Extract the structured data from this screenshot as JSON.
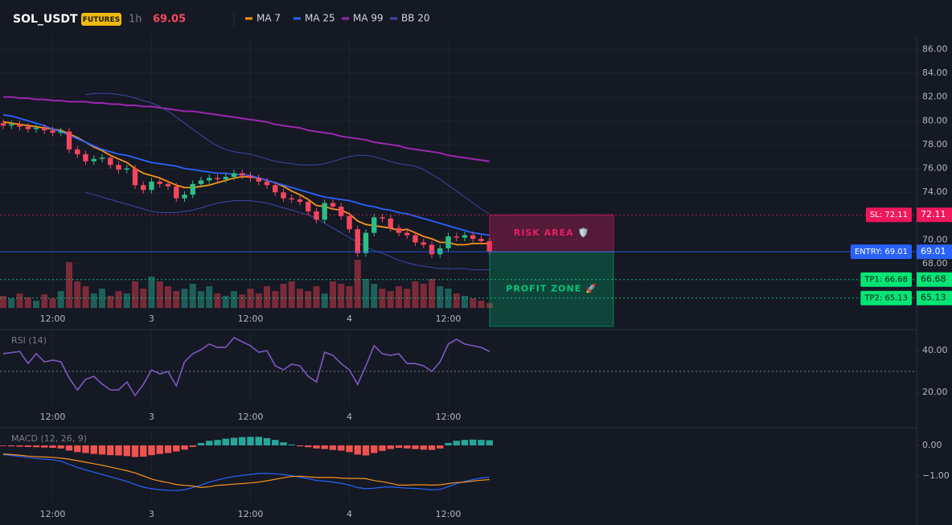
{
  "header": {
    "symbol": "SOL_USDT",
    "badge": "FUTURES",
    "interval": "1h",
    "price": "69.05"
  },
  "chart_data": [
    {
      "type": "candlestick",
      "categories": [
        null,
        null,
        null,
        null,
        null,
        null,
        "12:00",
        null,
        null,
        null,
        null,
        null,
        null,
        null,
        null,
        null,
        null,
        null,
        "3",
        null,
        null,
        null,
        null,
        null,
        null,
        null,
        null,
        null,
        null,
        null,
        "12:00",
        null,
        null,
        null,
        null,
        null,
        null,
        null,
        null,
        null,
        null,
        null,
        "4",
        null,
        null,
        null,
        null,
        null,
        null,
        null,
        null,
        null,
        null,
        null,
        "12:00",
        null,
        null,
        null,
        null,
        null
      ],
      "open": [
        79.8,
        79.6,
        79.7,
        79.5,
        79.3,
        79.4,
        79.2,
        79.0,
        79.1,
        77.6,
        77.2,
        76.6,
        76.8,
        76.9,
        76.3,
        75.9,
        76.0,
        74.6,
        74.2,
        74.9,
        74.7,
        74.5,
        73.5,
        73.8,
        74.7,
        75.0,
        75.2,
        75.1,
        75.3,
        75.6,
        75.4,
        75.2,
        74.9,
        74.6,
        74.0,
        73.5,
        73.4,
        73.2,
        72.4,
        71.7,
        73.1,
        72.8,
        72.0,
        70.9,
        68.9,
        70.6,
        71.9,
        71.8,
        71.0,
        70.6,
        70.4,
        69.8,
        69.6,
        68.8,
        69.3,
        70.3,
        70.2,
        70.4,
        70.1,
        69.9
      ],
      "high": [
        80.1,
        80.0,
        80.0,
        79.8,
        79.7,
        79.7,
        79.5,
        79.4,
        79.4,
        77.9,
        77.5,
        77.1,
        77.2,
        77.2,
        76.6,
        76.3,
        76.3,
        74.9,
        75.2,
        75.2,
        75.0,
        74.8,
        74.1,
        75.0,
        75.3,
        75.5,
        75.5,
        75.6,
        75.9,
        75.9,
        75.7,
        75.5,
        75.2,
        74.9,
        74.3,
        73.8,
        73.7,
        73.5,
        72.7,
        73.4,
        73.4,
        73.1,
        72.3,
        71.2,
        70.9,
        72.2,
        72.2,
        72.1,
        71.3,
        70.9,
        70.7,
        70.1,
        69.9,
        69.6,
        70.6,
        70.6,
        70.7,
        70.7,
        70.4,
        70.2
      ],
      "low": [
        79.3,
        79.3,
        79.2,
        79.0,
        79.0,
        78.9,
        78.7,
        78.7,
        77.3,
        76.9,
        76.3,
        76.3,
        76.5,
        76.0,
        75.6,
        75.6,
        74.3,
        73.9,
        73.9,
        74.4,
        74.2,
        73.2,
        73.2,
        73.5,
        74.4,
        74.7,
        74.8,
        74.8,
        75.0,
        75.1,
        74.9,
        74.6,
        74.3,
        73.7,
        73.2,
        73.1,
        72.9,
        72.1,
        71.4,
        71.4,
        72.5,
        71.7,
        70.6,
        68.6,
        68.6,
        70.3,
        71.5,
        70.7,
        70.3,
        70.1,
        69.5,
        69.3,
        68.5,
        68.5,
        69.0,
        69.9,
        69.9,
        69.8,
        69.6,
        68.75
      ],
      "close": [
        79.6,
        79.7,
        79.5,
        79.3,
        79.4,
        79.2,
        79.0,
        79.1,
        77.6,
        77.2,
        76.6,
        76.8,
        76.9,
        76.3,
        75.9,
        76.0,
        74.6,
        74.2,
        74.9,
        74.7,
        74.5,
        73.5,
        73.8,
        74.7,
        75.0,
        75.2,
        75.1,
        75.3,
        75.6,
        75.4,
        75.2,
        74.9,
        74.6,
        74.0,
        73.5,
        73.4,
        73.2,
        72.4,
        71.7,
        73.1,
        72.8,
        72.0,
        70.9,
        68.9,
        70.6,
        71.9,
        71.8,
        71.0,
        70.6,
        70.4,
        69.8,
        69.6,
        68.8,
        69.3,
        70.3,
        70.2,
        70.4,
        70.1,
        69.9,
        69.05
      ],
      "volume": [
        25,
        20,
        30,
        22,
        15,
        28,
        20,
        35,
        95,
        55,
        45,
        30,
        40,
        25,
        35,
        30,
        55,
        40,
        65,
        55,
        45,
        35,
        40,
        50,
        35,
        45,
        30,
        25,
        35,
        28,
        40,
        30,
        45,
        35,
        50,
        55,
        40,
        35,
        45,
        30,
        55,
        50,
        45,
        100,
        60,
        50,
        40,
        35,
        45,
        40,
        55,
        50,
        60,
        45,
        40,
        30,
        25,
        20,
        15,
        10
      ],
      "up_color": "#2ebd85",
      "down_color": "#f6465d",
      "volume_up_color": "#1f5f5a",
      "volume_down_color": "#7a2a38",
      "ylim": [
        64.3,
        87.1
      ],
      "yticks": [
        {
          "value": 68,
          "label": "68.00"
        },
        {
          "value": 70,
          "label": "70.00"
        },
        {
          "value": 74,
          "label": "74.00"
        },
        {
          "value": 76,
          "label": "76.00"
        },
        {
          "value": 78,
          "label": "78.00"
        },
        {
          "value": 80,
          "label": "80.00"
        },
        {
          "value": 82,
          "label": "82.00"
        },
        {
          "value": 84,
          "label": "84.00"
        },
        {
          "value": 86,
          "label": "86.00"
        }
      ],
      "grid": true,
      "series": [
        {
          "name": "MA 7",
          "color": "#f7931a",
          "values": [
            79.9,
            79.8,
            79.7,
            79.6,
            79.5,
            79.4,
            79.3,
            79.2,
            78.9,
            78.6,
            78.2,
            77.8,
            77.5,
            77.1,
            76.8,
            76.5,
            76.0,
            75.6,
            75.4,
            75.2,
            74.9,
            74.6,
            74.4,
            74.4,
            74.5,
            74.6,
            74.8,
            75.0,
            75.2,
            75.3,
            75.3,
            75.2,
            75.0,
            74.8,
            74.5,
            74.1,
            73.8,
            73.4,
            72.9,
            72.8,
            72.6,
            72.5,
            72.2,
            71.6,
            71.3,
            71.2,
            71.1,
            71.0,
            70.8,
            70.9,
            70.6,
            70.3,
            70.1,
            69.8,
            69.8,
            69.6,
            69.6,
            69.7,
            69.7,
            69.7
          ]
        },
        {
          "name": "MA 25",
          "color": "#2962ff",
          "values": [
            80.5,
            80.4,
            80.2,
            80.0,
            79.8,
            79.6,
            79.3,
            79.1,
            78.8,
            78.5,
            78.2,
            77.9,
            77.6,
            77.4,
            77.2,
            77.1,
            76.9,
            76.7,
            76.5,
            76.4,
            76.3,
            76.2,
            76.0,
            75.9,
            75.8,
            75.7,
            75.6,
            75.6,
            75.5,
            75.5,
            75.4,
            75.2,
            75.0,
            74.8,
            74.6,
            74.4,
            74.2,
            74.0,
            73.8,
            73.6,
            73.5,
            73.4,
            73.3,
            73.1,
            72.9,
            72.8,
            72.6,
            72.5,
            72.3,
            72.2,
            72.0,
            71.8,
            71.6,
            71.4,
            71.2,
            71.0,
            70.8,
            70.6,
            70.5,
            70.4
          ]
        },
        {
          "name": "MA 99",
          "color": "#9c27b0",
          "values": [
            82.0,
            82.0,
            81.9,
            81.9,
            81.8,
            81.8,
            81.7,
            81.7,
            81.6,
            81.6,
            81.6,
            81.5,
            81.5,
            81.4,
            81.4,
            81.3,
            81.3,
            81.2,
            81.2,
            81.1,
            81.0,
            80.9,
            80.8,
            80.8,
            80.7,
            80.6,
            80.5,
            80.4,
            80.3,
            80.2,
            80.1,
            80.0,
            79.9,
            79.7,
            79.6,
            79.5,
            79.4,
            79.2,
            79.1,
            79.0,
            78.9,
            78.7,
            78.6,
            78.5,
            78.4,
            78.2,
            78.1,
            78.0,
            77.9,
            77.7,
            77.6,
            77.5,
            77.4,
            77.3,
            77.1,
            77.0,
            76.9,
            76.8,
            76.7,
            76.6
          ]
        },
        {
          "name": "BB 20",
          "color": "#3949ab",
          "upper": [
            null,
            null,
            null,
            null,
            null,
            null,
            null,
            null,
            null,
            null,
            82.2,
            82.3,
            82.3,
            82.3,
            82.2,
            82.1,
            81.9,
            81.7,
            81.5,
            81.2,
            80.8,
            80.3,
            79.8,
            79.3,
            78.8,
            78.3,
            77.9,
            77.6,
            77.4,
            77.3,
            77.2,
            77.0,
            76.8,
            76.6,
            76.5,
            76.4,
            76.3,
            76.3,
            76.3,
            76.4,
            76.6,
            76.8,
            77.0,
            77.1,
            77.1,
            77.0,
            76.8,
            76.6,
            76.4,
            76.3,
            76.2,
            75.9,
            75.5,
            75.1,
            74.6,
            74.1,
            73.6,
            73.1,
            72.6,
            72.2
          ],
          "lower": [
            null,
            null,
            null,
            null,
            null,
            null,
            null,
            null,
            null,
            null,
            74.0,
            73.8,
            73.6,
            73.4,
            73.2,
            73.0,
            72.8,
            72.6,
            72.4,
            72.3,
            72.3,
            72.3,
            72.4,
            72.5,
            72.7,
            72.9,
            73.1,
            73.2,
            73.3,
            73.3,
            73.3,
            73.2,
            73.1,
            72.9,
            72.7,
            72.5,
            72.3,
            72.1,
            71.8,
            71.4,
            71.0,
            70.6,
            70.2,
            69.8,
            69.4,
            69.1,
            68.9,
            68.6,
            68.3,
            68.1,
            67.9,
            67.8,
            67.7,
            67.6,
            67.6,
            67.6,
            67.6,
            67.5,
            67.5,
            67.5
          ]
        }
      ],
      "levels": [
        {
          "value": 72.11,
          "label": "SL: 72.11",
          "price_label": "72.11",
          "color": "#f0185a",
          "text_color": "#ffffff",
          "style": "dotted"
        },
        {
          "value": 69.01,
          "label": "ENTRY: 69.01",
          "price_label": "69.01",
          "color": "#2962ff",
          "text_color": "#ffffff",
          "style": "solid"
        },
        {
          "value": 66.68,
          "label": "TP1: 66.68",
          "price_label": "66.68",
          "color": "#00e676",
          "text_color": "#0b1a12",
          "style": "dotted"
        },
        {
          "value": 65.13,
          "label": "TP2: 65.13",
          "price_label": "65.13",
          "color": "#00e676",
          "text_color": "#0b1a12",
          "style": "dotted"
        }
      ],
      "zones": [
        {
          "label": "RISK AREA 🛡️",
          "color": "#e91e63"
        },
        {
          "label": "PROFIT ZONE 🚀",
          "color": "#00c97a"
        }
      ]
    },
    {
      "type": "line",
      "title": "RSI (14)",
      "color": "#7e57c2",
      "values": [
        38.5,
        39.0,
        39.6,
        33.8,
        38.5,
        34.6,
        35.4,
        34.6,
        26.9,
        21.2,
        26.2,
        27.7,
        24.0,
        21.2,
        21.2,
        25.0,
        18.5,
        23.8,
        30.8,
        28.8,
        30.0,
        23.1,
        34.6,
        38.5,
        40.4,
        43.1,
        41.5,
        41.5,
        46.2,
        44.2,
        42.3,
        39.2,
        40.0,
        32.7,
        30.8,
        33.5,
        32.7,
        27.7,
        25.0,
        39.2,
        37.7,
        33.8,
        30.8,
        23.8,
        32.7,
        42.3,
        38.5,
        37.7,
        38.5,
        33.8,
        33.8,
        32.7,
        30.0,
        34.6,
        43.1,
        45.4,
        43.1,
        42.3,
        41.5,
        39.6
      ],
      "ylim": [
        13.5,
        50
      ],
      "yticks": [
        {
          "value": 20,
          "label": "20.00"
        },
        {
          "value": 40,
          "label": "40.00"
        }
      ],
      "reference": 30
    },
    {
      "type": "macd",
      "title": "MACD (12, 26, 9)",
      "histogram": {
        "up_color": "#26a69a",
        "down_color": "#ef5350",
        "values": [
          -0.02,
          -0.03,
          -0.04,
          -0.05,
          -0.06,
          -0.07,
          -0.08,
          -0.1,
          -0.17,
          -0.22,
          -0.25,
          -0.28,
          -0.3,
          -0.32,
          -0.33,
          -0.35,
          -0.38,
          -0.37,
          -0.32,
          -0.28,
          -0.25,
          -0.2,
          -0.14,
          -0.05,
          0.08,
          0.15,
          0.18,
          0.22,
          0.25,
          0.27,
          0.28,
          0.28,
          0.24,
          0.18,
          0.1,
          0.03,
          -0.03,
          -0.06,
          -0.1,
          -0.12,
          -0.15,
          -0.17,
          -0.22,
          -0.3,
          -0.33,
          -0.25,
          -0.18,
          -0.12,
          -0.08,
          -0.1,
          -0.12,
          -0.14,
          -0.15,
          -0.1,
          0.08,
          0.15,
          0.18,
          0.19,
          0.18,
          0.17
        ]
      },
      "series": [
        {
          "color": "#2962ff",
          "values": [
            -0.3,
            -0.33,
            -0.36,
            -0.4,
            -0.43,
            -0.45,
            -0.47,
            -0.52,
            -0.62,
            -0.72,
            -0.8,
            -0.88,
            -0.95,
            -1.03,
            -1.1,
            -1.18,
            -1.28,
            -1.37,
            -1.42,
            -1.45,
            -1.47,
            -1.48,
            -1.45,
            -1.38,
            -1.3,
            -1.2,
            -1.13,
            -1.07,
            -1.02,
            -0.98,
            -0.95,
            -0.92,
            -0.92,
            -0.93,
            -0.96,
            -0.99,
            -1.04,
            -1.09,
            -1.15,
            -1.17,
            -1.2,
            -1.24,
            -1.3,
            -1.38,
            -1.42,
            -1.4,
            -1.37,
            -1.36,
            -1.38,
            -1.4,
            -1.41,
            -1.43,
            -1.45,
            -1.44,
            -1.35,
            -1.25,
            -1.18,
            -1.12,
            -1.07,
            -1.04
          ]
        },
        {
          "color": "#f7931a",
          "values": [
            -0.28,
            -0.3,
            -0.32,
            -0.35,
            -0.37,
            -0.38,
            -0.39,
            -0.42,
            -0.45,
            -0.5,
            -0.55,
            -0.6,
            -0.65,
            -0.71,
            -0.77,
            -0.83,
            -0.9,
            -1.0,
            -1.1,
            -1.17,
            -1.22,
            -1.28,
            -1.31,
            -1.33,
            -1.38,
            -1.35,
            -1.31,
            -1.29,
            -1.27,
            -1.25,
            -1.23,
            -1.2,
            -1.16,
            -1.11,
            -1.06,
            -1.02,
            -1.01,
            -1.03,
            -1.05,
            -1.05,
            -1.05,
            -1.07,
            -1.08,
            -1.08,
            -1.09,
            -1.15,
            -1.19,
            -1.24,
            -1.3,
            -1.3,
            -1.29,
            -1.29,
            -1.3,
            -1.29,
            -1.25,
            -1.22,
            -1.2,
            -1.17,
            -1.14,
            -1.12
          ]
        }
      ],
      "ylim": [
        -1.87,
        0.5
      ],
      "yticks": [
        {
          "value": -1,
          "label": "−1.00"
        },
        {
          "value": 0,
          "label": "0.00"
        }
      ]
    }
  ]
}
